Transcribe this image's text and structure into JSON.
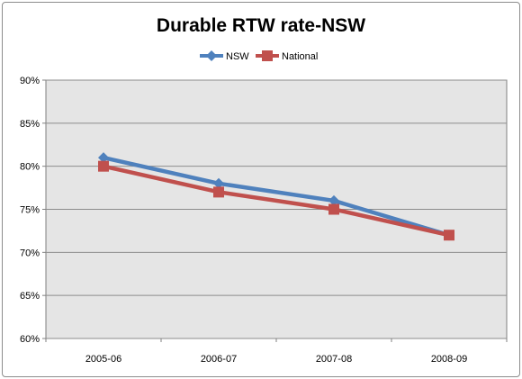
{
  "chart_data": {
    "type": "line",
    "title": "Durable RTW rate-NSW",
    "xlabel": "",
    "ylabel": "",
    "categories": [
      "2005-06",
      "2006-07",
      "2007-08",
      "2008-09"
    ],
    "ylim": [
      60,
      90
    ],
    "ytick_step": 5,
    "ytick_labels": [
      "60%",
      "65%",
      "70%",
      "75%",
      "80%",
      "85%",
      "90%"
    ],
    "grid": true,
    "plot_background": "#e5e5e5",
    "legend_position": "top",
    "series": [
      {
        "name": "NSW",
        "values": [
          81,
          78,
          76,
          72
        ],
        "color": "#4f81bd",
        "marker": "diamond"
      },
      {
        "name": "National",
        "values": [
          80,
          77,
          75,
          72
        ],
        "color": "#c0504d",
        "marker": "square"
      }
    ]
  }
}
